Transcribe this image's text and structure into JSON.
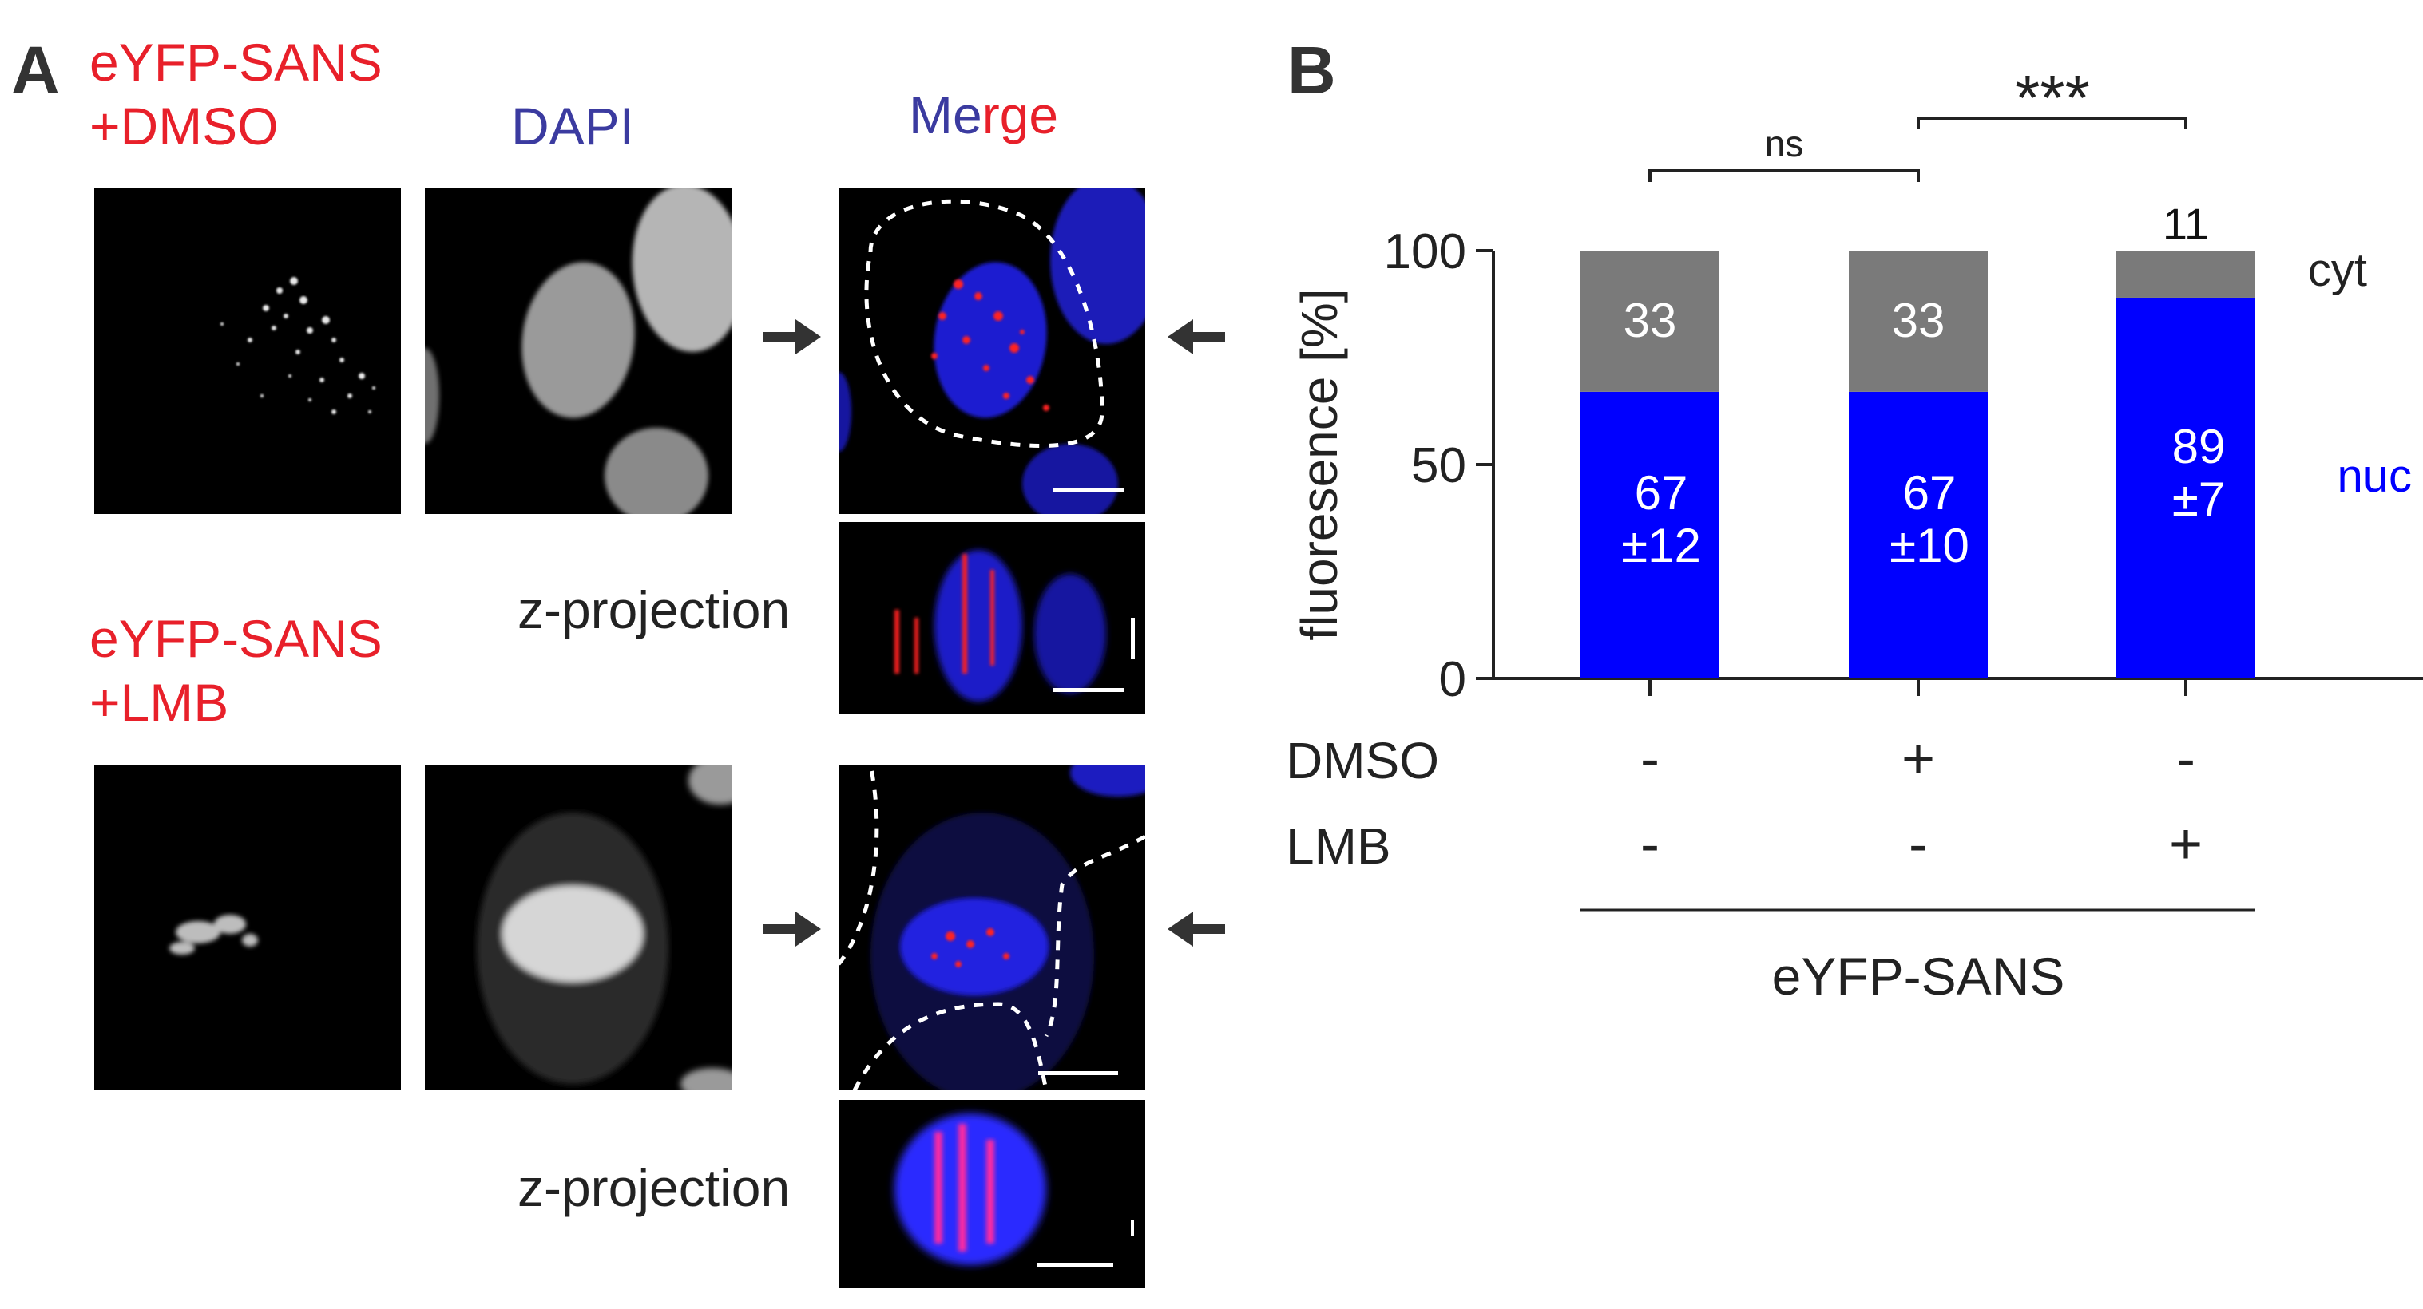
{
  "panel_a": {
    "letter": "A",
    "row1_label_line1": "eYFP-SANS",
    "row1_label_line2": "+DMSO",
    "col2_header": "DAPI",
    "col3_header_part1": "Me",
    "col3_header_part2": "rge",
    "zproj_label_1": "z-projection",
    "row2_label_line1": "eYFP-SANS",
    "row2_label_line2": "+LMB",
    "zproj_label_2": "z-projection"
  },
  "panel_b": {
    "letter": "B"
  },
  "colors": {
    "nuc": "#0000ff",
    "cyt": "#7a7a7a",
    "red_label": "#e8202a",
    "dapi_label": "#3b3ba0"
  },
  "chart_data": {
    "type": "bar",
    "stacked": true,
    "ylabel": "fluoresence [%]",
    "ylim": [
      0,
      100
    ],
    "yticks": [
      0,
      50,
      100
    ],
    "categories": [
      "DMSO- LMB-",
      "DMSO+ LMB-",
      "DMSO- LMB+"
    ],
    "series": [
      {
        "name": "nuc",
        "values": [
          67,
          67,
          89
        ],
        "labels": [
          "67\n±12",
          "67\n±10",
          "89\n±7"
        ]
      },
      {
        "name": "cyt",
        "values": [
          33,
          33,
          11
        ],
        "labels": [
          "33",
          "33",
          "11"
        ]
      }
    ],
    "legend": [
      "cyt",
      "nuc"
    ],
    "treatment_rows": [
      {
        "name": "DMSO",
        "values": [
          "-",
          "+",
          "-"
        ]
      },
      {
        "name": "LMB",
        "values": [
          "-",
          "-",
          "+"
        ]
      }
    ],
    "group_label": "eYFP-SANS",
    "significance": [
      {
        "pair": [
          0,
          1
        ],
        "label": "ns"
      },
      {
        "pair": [
          1,
          2
        ],
        "label": "***"
      }
    ]
  }
}
